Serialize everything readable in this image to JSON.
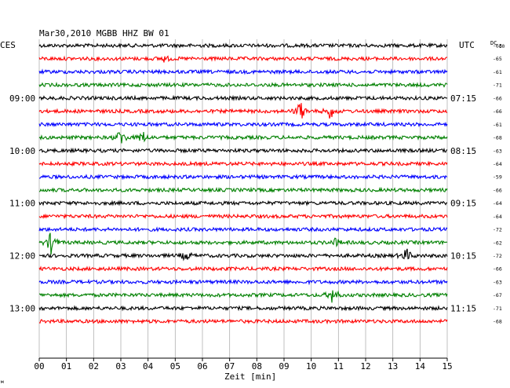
{
  "chart_data": {
    "type": "line",
    "title": "Mar30,2010   MGBB HHZ BW 01",
    "left_label": "CES",
    "right_label": "UTC",
    "dc_label": "DC",
    "dc_sub": "60",
    "xlabel": "Zeit [min]",
    "xlim": [
      0,
      15
    ],
    "x_ticks": [
      "00",
      "01",
      "02",
      "03",
      "04",
      "05",
      "06",
      "07",
      "08",
      "09",
      "10",
      "11",
      "12",
      "13",
      "14",
      "15"
    ],
    "line_colors": [
      "#000000",
      "#ff0000",
      "#0000ff",
      "#008000"
    ],
    "left_time_labels": [
      {
        "label": "09:00",
        "row": 4
      },
      {
        "label": "10:00",
        "row": 8
      },
      {
        "label": "11:00",
        "row": 12
      },
      {
        "label": "12:00",
        "row": 16
      },
      {
        "label": "13:00",
        "row": 20
      }
    ],
    "right_time_labels": [
      {
        "label": "07:15",
        "row": 4
      },
      {
        "label": "08:15",
        "row": 8
      },
      {
        "label": "09:15",
        "row": 12
      },
      {
        "label": "10:15",
        "row": 16
      },
      {
        "label": "11:15",
        "row": 20
      }
    ],
    "dc_offsets": [
      -63,
      -65,
      -61,
      -71,
      -66,
      -66,
      -61,
      -68,
      -63,
      -64,
      -59,
      -66,
      -64,
      -64,
      -72,
      -62,
      -72,
      -66,
      -63,
      -67,
      -71,
      -68
    ],
    "events": [
      {
        "row": 1,
        "minute": 4.6,
        "amp": 0.6
      },
      {
        "row": 5,
        "minute": 9.6,
        "amp": 2.2
      },
      {
        "row": 5,
        "minute": 10.7,
        "amp": 1.6
      },
      {
        "row": 7,
        "minute": 3.0,
        "amp": 1.9
      },
      {
        "row": 7,
        "minute": 3.8,
        "amp": 1.3
      },
      {
        "row": 15,
        "minute": 0.45,
        "amp": 2.6
      },
      {
        "row": 15,
        "minute": 10.9,
        "amp": 0.8
      },
      {
        "row": 16,
        "minute": 5.4,
        "amp": 1.1
      },
      {
        "row": 16,
        "minute": 13.5,
        "amp": 1.5
      },
      {
        "row": 19,
        "minute": 10.8,
        "amp": 1.9
      }
    ],
    "corner_mark": "м"
  }
}
